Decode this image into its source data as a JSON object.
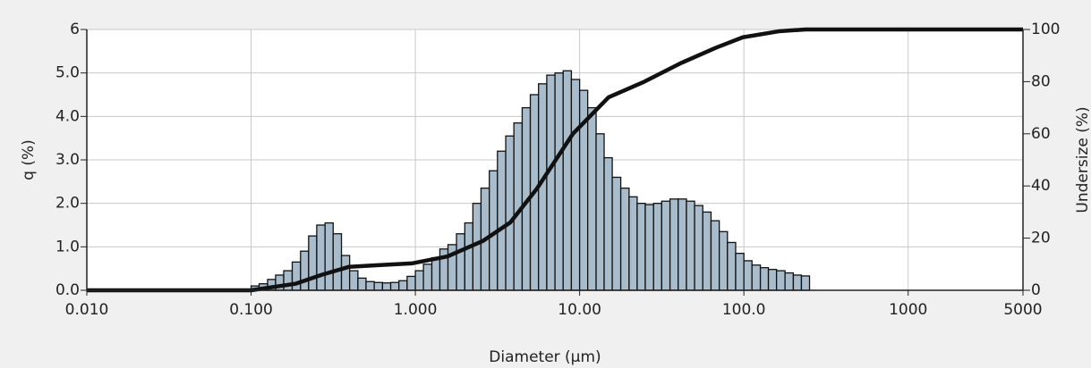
{
  "chart_data": {
    "type": "histogram",
    "xlabel": "Diameter (µm)",
    "ylabel": "q (%)",
    "y2label": "Undersize (%)",
    "xscale": "log",
    "xlim": [
      0.01,
      5000
    ],
    "xticks": [
      {
        "value": 0.01,
        "label": "0.010"
      },
      {
        "value": 0.1,
        "label": "0.100"
      },
      {
        "value": 1,
        "label": "1.000"
      },
      {
        "value": 10,
        "label": "10.00"
      },
      {
        "value": 100,
        "label": "100.0"
      },
      1000,
      5000
    ],
    "ylim": [
      0,
      6
    ],
    "yticks": [
      {
        "value": 0,
        "label": "0.0"
      },
      {
        "value": 1,
        "label": "1.0"
      },
      {
        "value": 2,
        "label": "2.0"
      },
      {
        "value": 3,
        "label": "3.0"
      },
      {
        "value": 4,
        "label": "4.0"
      },
      {
        "value": 5,
        "label": "5.0"
      },
      6
    ],
    "y2lim": [
      0,
      100
    ],
    "y2ticks": [
      0,
      20,
      40,
      60,
      80,
      100
    ],
    "grid": true,
    "color": "#a9bccb",
    "bins": [
      0.1,
      0.112,
      0.126,
      0.141,
      0.158,
      0.178,
      0.2,
      0.224,
      0.251,
      0.282,
      0.316,
      0.355,
      0.398,
      0.447,
      0.501,
      0.562,
      0.631,
      0.708,
      0.794,
      0.891,
      1,
      1.12,
      1.26,
      1.41,
      1.58,
      1.78,
      2,
      2.24,
      2.51,
      2.82,
      3.16,
      3.55,
      3.98,
      4.47,
      5.01,
      5.62,
      6.31,
      7.08,
      7.94,
      8.91,
      10,
      11.2,
      12.6,
      14.1,
      15.8,
      17.8,
      20,
      22.4,
      25.1,
      28.2,
      31.6,
      35.5,
      39.8,
      44.7,
      50.1,
      56.2,
      63.1,
      70.8,
      79.4,
      89.1,
      100,
      112,
      126,
      141,
      158,
      178,
      200,
      224,
      251
    ],
    "values": [
      0.1,
      0.15,
      0.25,
      0.35,
      0.45,
      0.65,
      0.9,
      1.25,
      1.5,
      1.55,
      1.3,
      0.8,
      0.45,
      0.28,
      0.2,
      0.18,
      0.17,
      0.18,
      0.22,
      0.32,
      0.45,
      0.6,
      0.75,
      0.95,
      1.05,
      1.3,
      1.55,
      2.0,
      2.35,
      2.75,
      3.2,
      3.55,
      3.85,
      4.2,
      4.5,
      4.75,
      4.95,
      5.0,
      5.05,
      4.85,
      4.6,
      4.2,
      3.6,
      3.05,
      2.6,
      2.35,
      2.15,
      2.0,
      1.97,
      2.0,
      2.05,
      2.1,
      2.1,
      2.05,
      1.95,
      1.8,
      1.6,
      1.35,
      1.1,
      0.85,
      0.68,
      0.58,
      0.52,
      0.48,
      0.45,
      0.4,
      0.35,
      0.33
    ],
    "series": [
      {
        "type": "line",
        "axis": "y2",
        "color": "#111111",
        "x": [
          0.01,
          0.1,
          0.186,
          0.271,
          0.395,
          0.576,
          0.95,
          1.57,
          2.59,
          3.78,
          5.5,
          9.1,
          15,
          24.8,
          41,
          67.6,
          98.5,
          163,
          237,
          5000
        ],
        "values": [
          0,
          0,
          2.5,
          6,
          9,
          9.6,
          10.3,
          13,
          19,
          26,
          39,
          60,
          74,
          80,
          87,
          93,
          97,
          99.3,
          100,
          100
        ]
      }
    ]
  }
}
